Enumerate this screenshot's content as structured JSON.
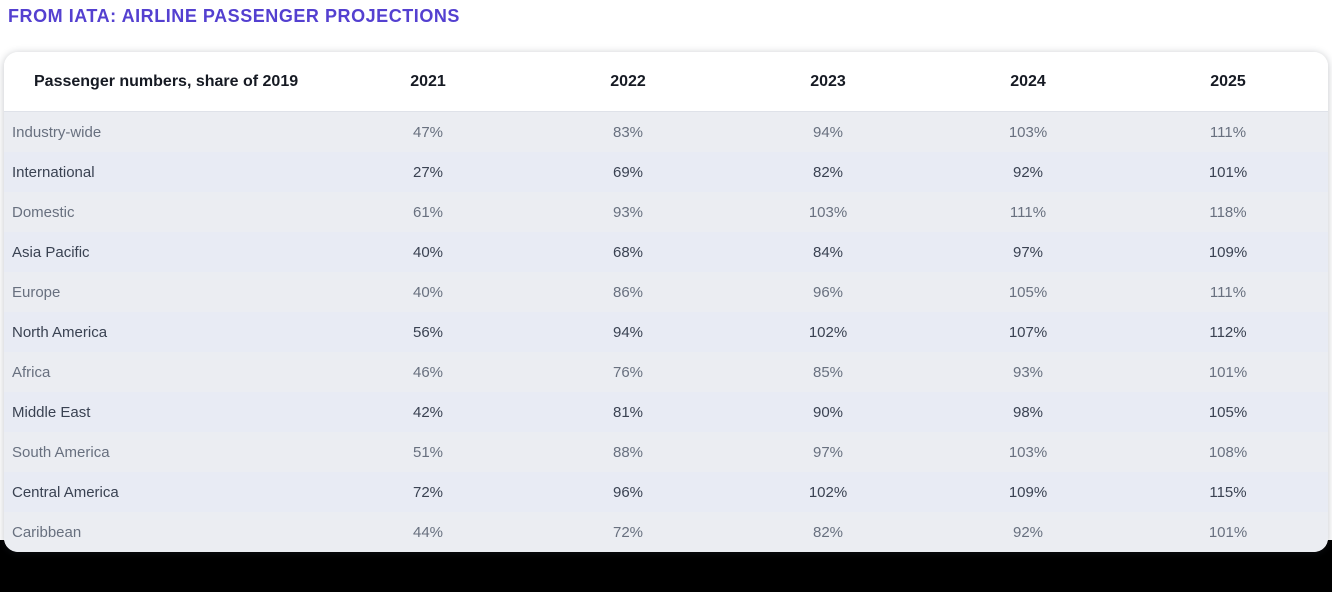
{
  "page": {
    "title": "FROM IATA: AIRLINE PASSENGER PROJECTIONS"
  },
  "colors": {
    "accent_purple": "#5440d0",
    "card_bg": "#ffffff",
    "row_odd_bg": "#ebedf2",
    "row_even_bg": "#e8ebf4",
    "row_odd_text": "#68707f",
    "row_even_text": "#3a4252",
    "header_text": "#161a23",
    "bottom_band": "#000000"
  },
  "table": {
    "header_label": "Passenger numbers, share of 2019",
    "years": [
      "2021",
      "2022",
      "2023",
      "2024",
      "2025"
    ],
    "rows": [
      {
        "label": "Industry-wide",
        "values": [
          "47%",
          "83%",
          "94%",
          "103%",
          "111%"
        ]
      },
      {
        "label": "International",
        "values": [
          "27%",
          "69%",
          "82%",
          "92%",
          "101%"
        ]
      },
      {
        "label": "Domestic",
        "values": [
          "61%",
          "93%",
          "103%",
          "111%",
          "118%"
        ]
      },
      {
        "label": "Asia Pacific",
        "values": [
          "40%",
          "68%",
          "84%",
          "97%",
          "109%"
        ]
      },
      {
        "label": "Europe",
        "values": [
          "40%",
          "86%",
          "96%",
          "105%",
          "111%"
        ]
      },
      {
        "label": "North America",
        "values": [
          "56%",
          "94%",
          "102%",
          "107%",
          "112%"
        ]
      },
      {
        "label": "Africa",
        "values": [
          "46%",
          "76%",
          "85%",
          "93%",
          "101%"
        ]
      },
      {
        "label": "Middle East",
        "values": [
          "42%",
          "81%",
          "90%",
          "98%",
          "105%"
        ]
      },
      {
        "label": "South America",
        "values": [
          "51%",
          "88%",
          "97%",
          "103%",
          "108%"
        ]
      },
      {
        "label": "Central America",
        "values": [
          "72%",
          "96%",
          "102%",
          "109%",
          "115%"
        ]
      },
      {
        "label": "Caribbean",
        "values": [
          "44%",
          "72%",
          "82%",
          "92%",
          "101%"
        ]
      }
    ]
  },
  "chart_data": {
    "type": "table",
    "title": "FROM IATA: AIRLINE PASSENGER PROJECTIONS",
    "subtitle": "Passenger numbers, share of 2019",
    "categories": [
      "2021",
      "2022",
      "2023",
      "2024",
      "2025"
    ],
    "series": [
      {
        "name": "Industry-wide",
        "values": [
          47,
          83,
          94,
          103,
          111
        ]
      },
      {
        "name": "International",
        "values": [
          27,
          69,
          82,
          92,
          101
        ]
      },
      {
        "name": "Domestic",
        "values": [
          61,
          93,
          103,
          111,
          118
        ]
      },
      {
        "name": "Asia Pacific",
        "values": [
          40,
          68,
          84,
          97,
          109
        ]
      },
      {
        "name": "Europe",
        "values": [
          40,
          86,
          96,
          105,
          111
        ]
      },
      {
        "name": "North America",
        "values": [
          56,
          94,
          102,
          107,
          112
        ]
      },
      {
        "name": "Africa",
        "values": [
          46,
          76,
          85,
          93,
          101
        ]
      },
      {
        "name": "Middle East",
        "values": [
          42,
          81,
          90,
          98,
          105
        ]
      },
      {
        "name": "South America",
        "values": [
          51,
          88,
          97,
          103,
          108
        ]
      },
      {
        "name": "Central America",
        "values": [
          72,
          96,
          102,
          109,
          115
        ]
      },
      {
        "name": "Caribbean",
        "values": [
          44,
          72,
          82,
          92,
          101
        ]
      }
    ],
    "unit": "percent of 2019 passenger numbers"
  }
}
